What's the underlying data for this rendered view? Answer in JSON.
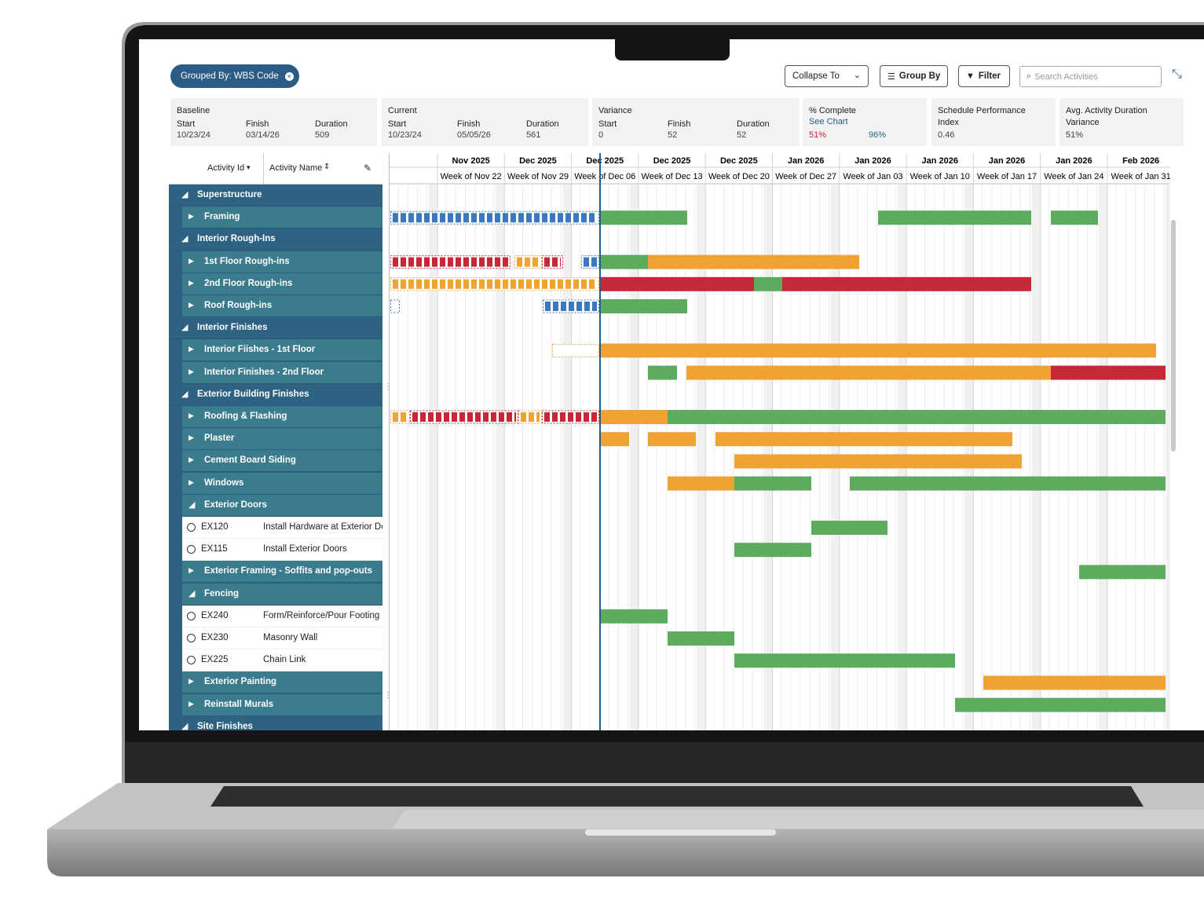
{
  "toolbar": {
    "grouped_by": "Grouped By: WBS Code",
    "collapse_to": "Collapse To",
    "group_by": "Group By",
    "filter": "Filter",
    "search_placeholder": "Search Activities"
  },
  "summary": [
    {
      "title": "Baseline",
      "fields": [
        {
          "label": "Start",
          "value": "10/23/24"
        },
        {
          "label": "Finish",
          "value": "03/14/26"
        },
        {
          "label": "Duration",
          "value": "509"
        }
      ]
    },
    {
      "title": "Current",
      "fields": [
        {
          "label": "Start",
          "value": "10/23/24"
        },
        {
          "label": "Finish",
          "value": "05/05/26"
        },
        {
          "label": "Duration",
          "value": "561"
        }
      ]
    },
    {
      "title": "Variance",
      "fields": [
        {
          "label": "Start",
          "value": "0"
        },
        {
          "label": "Finish",
          "value": "52"
        },
        {
          "label": "Duration",
          "value": "52"
        }
      ]
    },
    {
      "title": "% Complete",
      "link": "See Chart",
      "fields": [
        {
          "value": "51%"
        },
        {
          "value": "96%"
        }
      ]
    },
    {
      "title": "Schedule Performance Index",
      "fields": [
        {
          "value": "0.46"
        }
      ]
    },
    {
      "title": "Avg. Activity Duration Variance",
      "fields": [
        {
          "value": "51%"
        }
      ]
    }
  ],
  "columns": [
    "Activity Id",
    "Activity Name"
  ],
  "timeline": {
    "months": [
      "Nov 2025",
      "Dec 2025",
      "Dec 2025",
      "Dec 2025",
      "Dec 2025",
      "Jan 2026",
      "Jan 2026",
      "Jan 2026",
      "Jan 2026",
      "Jan 2026",
      "Feb 2026"
    ],
    "weeks": [
      "Week of Nov 22",
      "Week of Nov 29",
      "Week of Dec 06",
      "Week of Dec 13",
      "Week of Dec 20",
      "Week of Dec 27",
      "Week of Jan 03",
      "Week of Jan 10",
      "Week of Jan 17",
      "Week of Jan 24",
      "Week of Jan 31"
    ]
  },
  "tree": [
    {
      "label": "Superstructure",
      "expanded": true,
      "children": [
        {
          "label": "Framing",
          "expanded": false
        }
      ]
    },
    {
      "label": "Interior Rough-Ins",
      "expanded": true,
      "children": [
        {
          "label": "1st Floor Rough-ins",
          "expanded": false
        },
        {
          "label": "2nd Floor Rough-ins",
          "expanded": false
        },
        {
          "label": "Roof Rough-ins",
          "expanded": false
        }
      ]
    },
    {
      "label": "Interior Finishes",
      "expanded": true,
      "children": [
        {
          "label": "Interior Fiishes - 1st Floor",
          "expanded": false
        },
        {
          "label": "Interior Finishes - 2nd Floor",
          "expanded": false
        }
      ]
    },
    {
      "label": "Exterior Building Finishes",
      "expanded": true,
      "children": [
        {
          "label": "Roofing & Flashing",
          "expanded": false
        },
        {
          "label": "Plaster",
          "expanded": false
        },
        {
          "label": "Cement Board Siding",
          "expanded": false
        },
        {
          "label": "Windows",
          "expanded": false
        },
        {
          "label": "Exterior Doors",
          "expanded": true,
          "children": [
            {
              "id": "EX120",
              "name": "Install Hardware at Exterior Dc"
            },
            {
              "id": "EX115",
              "name": "Install Exterior Doors"
            }
          ]
        },
        {
          "label": "Exterior Framing - Soffits and pop-outs",
          "expanded": false
        },
        {
          "label": "Fencing",
          "expanded": true,
          "children": [
            {
              "id": "EX240",
              "name": "Form/Reinforce/Pour Footing"
            },
            {
              "id": "EX230",
              "name": "Masonry Wall"
            },
            {
              "id": "EX225",
              "name": "Chain Link"
            }
          ]
        },
        {
          "label": "Exterior Painting",
          "expanded": false
        },
        {
          "label": "Reinstall Murals",
          "expanded": false
        }
      ]
    },
    {
      "label": "Site Finishes",
      "expanded": true,
      "children": []
    }
  ]
}
